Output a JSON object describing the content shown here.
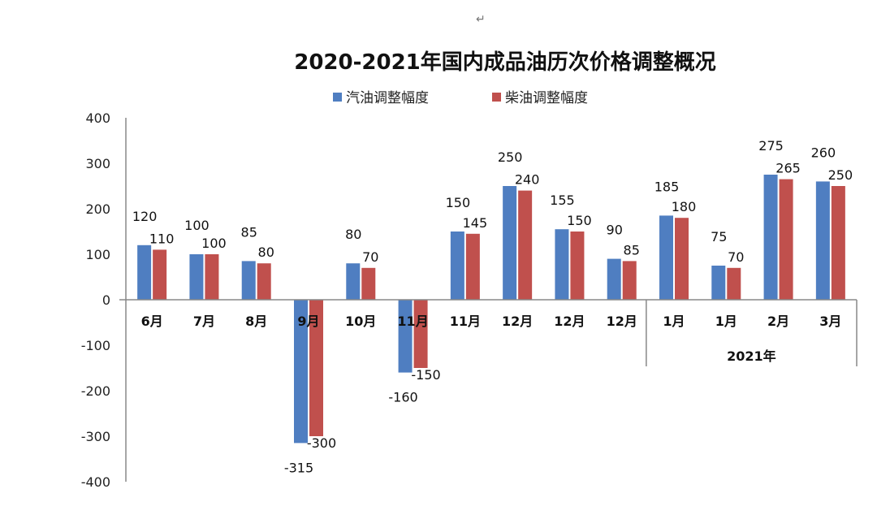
{
  "corner_mark": "↵",
  "colors": {
    "gasoline": "#4F7EC1",
    "diesel": "#C0504D",
    "axis": "#888888"
  },
  "chart_data": {
    "type": "bar",
    "title": "2020-2021年国内成品油历次价格调整概况",
    "categories": [
      "6月",
      "7月",
      "8月",
      "9月",
      "10月",
      "11月",
      "11月",
      "12月",
      "12月",
      "12月",
      "1月",
      "1月",
      "2月",
      "3月"
    ],
    "series": [
      {
        "name": "汽油调整幅度",
        "values": [
          120,
          100,
          85,
          -315,
          80,
          -160,
          150,
          250,
          155,
          90,
          185,
          75,
          275,
          260
        ],
        "color": "#4F7EC1"
      },
      {
        "name": "柴油调整幅度",
        "values": [
          110,
          100,
          80,
          -300,
          70,
          -150,
          145,
          240,
          150,
          85,
          180,
          70,
          265,
          250
        ],
        "color": "#C0504D"
      }
    ],
    "yticks": [
      "400",
      "300",
      "200",
      "100",
      "0",
      "-100",
      "-200",
      "-300",
      "-400"
    ],
    "ylim": [
      -400,
      400
    ],
    "group_label": "2021年",
    "group_start_index": 10,
    "legend_position": "top-center",
    "grid": false
  }
}
